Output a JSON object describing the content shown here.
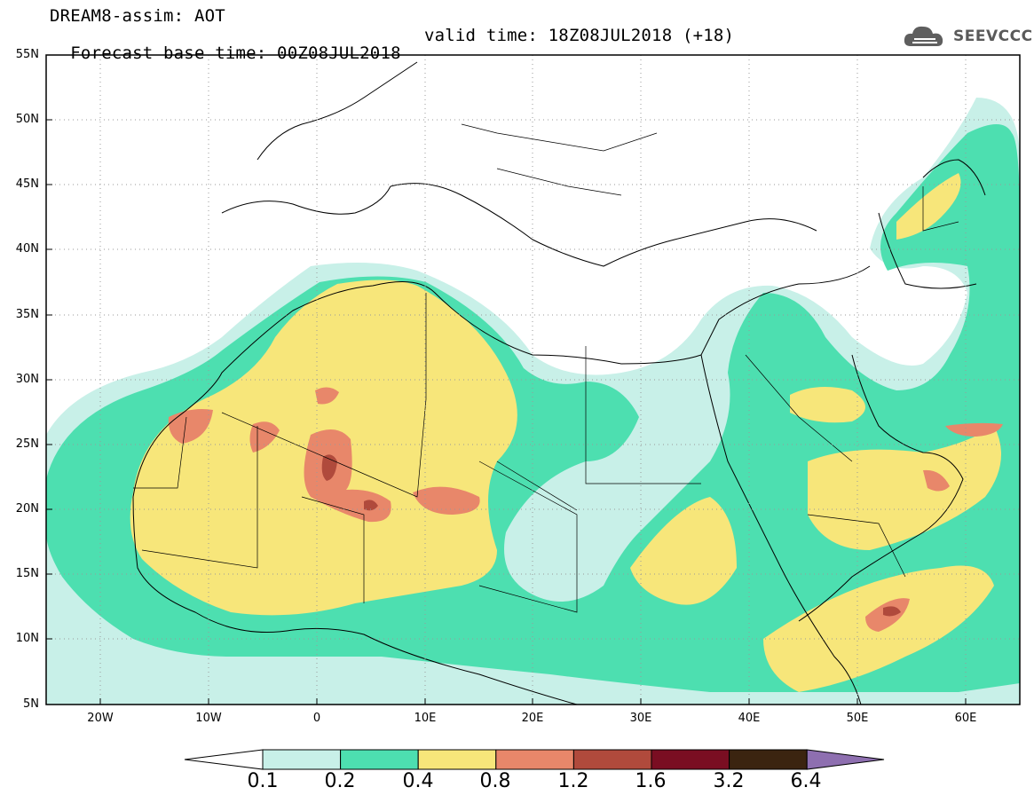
{
  "header": {
    "line1": "DREAM8-assim: AOT",
    "line2": "Forecast base time: 00Z08JUL2018",
    "valid": "valid time: 18Z08JUL2018 (+18)",
    "logo_text": "SEEVCCC"
  },
  "map": {
    "lat_labels": [
      "55N",
      "50N",
      "45N",
      "40N",
      "35N",
      "30N",
      "25N",
      "20N",
      "15N",
      "10N",
      "5N"
    ],
    "lon_labels": [
      "20W",
      "10W",
      "0",
      "10E",
      "20E",
      "30E",
      "40E",
      "50E",
      "60E"
    ],
    "lat_range": [
      5,
      55
    ],
    "lon_range": [
      -25,
      65
    ],
    "grid": "dotted",
    "field": "AOT"
  },
  "colorbar": {
    "labels": [
      "0.1",
      "0.2",
      "0.4",
      "0.8",
      "1.2",
      "1.6",
      "3.2",
      "6.4"
    ],
    "colors": [
      "#ffffff",
      "#c8f0e8",
      "#4ddfb0",
      "#f7e67a",
      "#e8876a",
      "#b04a3c",
      "#7a0e22",
      "#3b2410",
      "#8e6fb0"
    ]
  }
}
